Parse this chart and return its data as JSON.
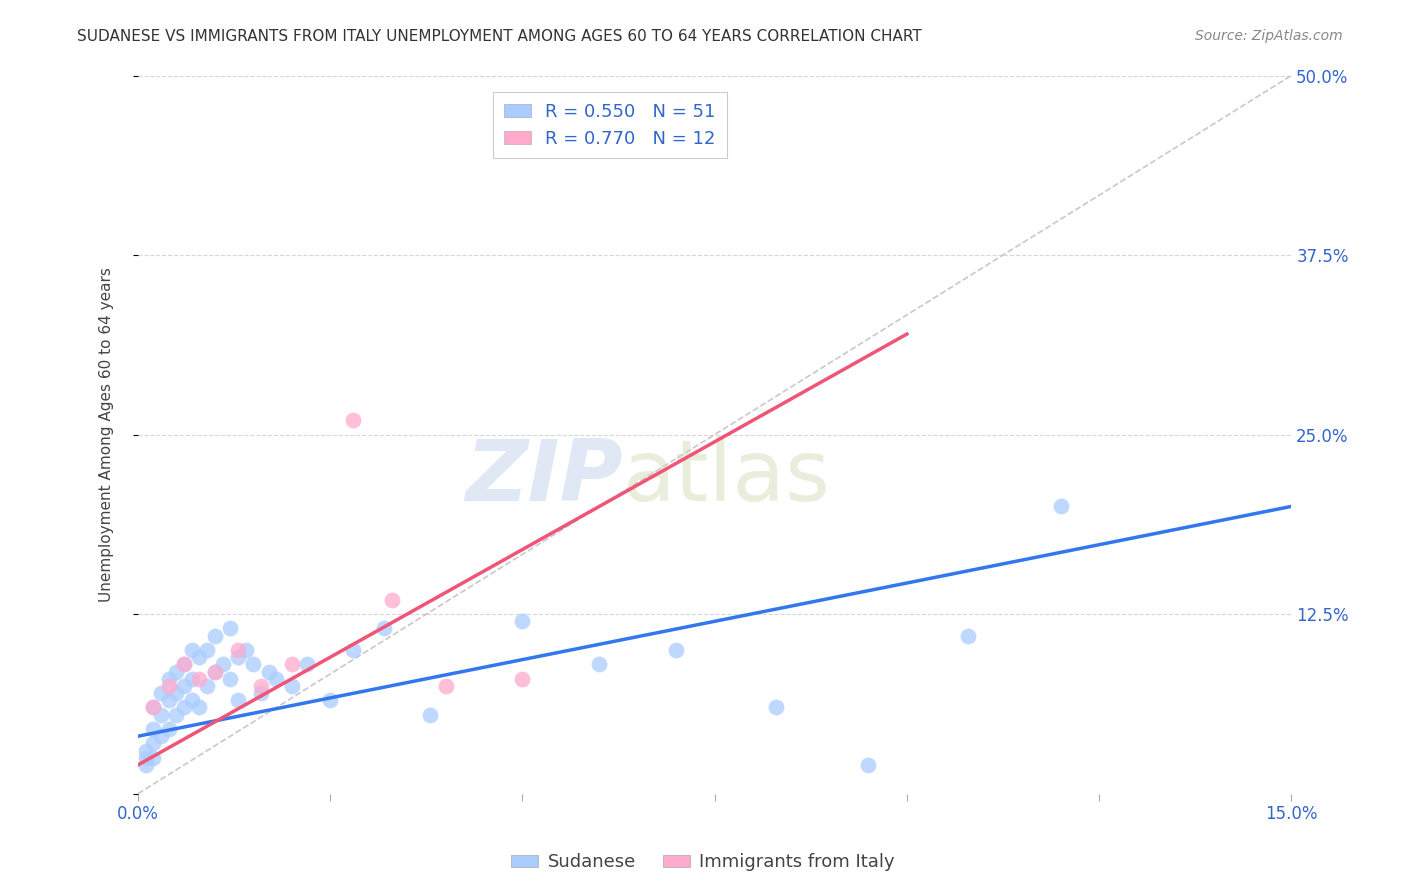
{
  "title": "SUDANESE VS IMMIGRANTS FROM ITALY UNEMPLOYMENT AMONG AGES 60 TO 64 YEARS CORRELATION CHART",
  "source": "Source: ZipAtlas.com",
  "ylabel": "Unemployment Among Ages 60 to 64 years",
  "xlim": [
    0.0,
    0.15
  ],
  "ylim": [
    0.0,
    0.5
  ],
  "xticks": [
    0.0,
    0.025,
    0.05,
    0.075,
    0.1,
    0.125,
    0.15
  ],
  "xtick_labels": [
    "0.0%",
    "",
    "",
    "",
    "",
    "",
    "15.0%"
  ],
  "yticks": [
    0.0,
    0.125,
    0.25,
    0.375,
    0.5
  ],
  "ytick_labels": [
    "",
    "12.5%",
    "25.0%",
    "37.5%",
    "50.0%"
  ],
  "sudanese_color": "#aaccff",
  "italy_color": "#ffaacc",
  "sudanese_line_color": "#3377ee",
  "italy_line_color": "#ee5577",
  "diag_color": "#bbbbbb",
  "sudanese_x": [
    0.001,
    0.001,
    0.001,
    0.002,
    0.002,
    0.002,
    0.002,
    0.003,
    0.003,
    0.003,
    0.004,
    0.004,
    0.004,
    0.005,
    0.005,
    0.005,
    0.006,
    0.006,
    0.006,
    0.007,
    0.007,
    0.007,
    0.008,
    0.008,
    0.009,
    0.009,
    0.01,
    0.01,
    0.011,
    0.012,
    0.012,
    0.013,
    0.013,
    0.014,
    0.015,
    0.016,
    0.017,
    0.018,
    0.02,
    0.022,
    0.025,
    0.028,
    0.032,
    0.038,
    0.05,
    0.06,
    0.07,
    0.083,
    0.095,
    0.108,
    0.12
  ],
  "sudanese_y": [
    0.025,
    0.03,
    0.02,
    0.045,
    0.035,
    0.025,
    0.06,
    0.07,
    0.055,
    0.04,
    0.08,
    0.065,
    0.045,
    0.085,
    0.07,
    0.055,
    0.09,
    0.075,
    0.06,
    0.1,
    0.08,
    0.065,
    0.095,
    0.06,
    0.1,
    0.075,
    0.11,
    0.085,
    0.09,
    0.115,
    0.08,
    0.095,
    0.065,
    0.1,
    0.09,
    0.07,
    0.085,
    0.08,
    0.075,
    0.09,
    0.065,
    0.1,
    0.115,
    0.055,
    0.12,
    0.09,
    0.1,
    0.06,
    0.02,
    0.11,
    0.2
  ],
  "italy_x": [
    0.002,
    0.004,
    0.006,
    0.008,
    0.01,
    0.013,
    0.016,
    0.02,
    0.028,
    0.033,
    0.04,
    0.05
  ],
  "italy_y": [
    0.06,
    0.075,
    0.09,
    0.08,
    0.085,
    0.1,
    0.075,
    0.09,
    0.26,
    0.135,
    0.075,
    0.08
  ],
  "sudanese_line_x": [
    0.0,
    0.15
  ],
  "sudanese_line_y": [
    0.04,
    0.2
  ],
  "italy_line_x": [
    0.0,
    0.1
  ],
  "italy_line_y": [
    0.02,
    0.32
  ],
  "watermark_text": "ZIPatlas",
  "background_color": "#ffffff",
  "grid_color": "#cccccc",
  "title_fontsize": 11,
  "axis_label_fontsize": 11,
  "tick_fontsize": 12,
  "legend_fontsize": 13
}
